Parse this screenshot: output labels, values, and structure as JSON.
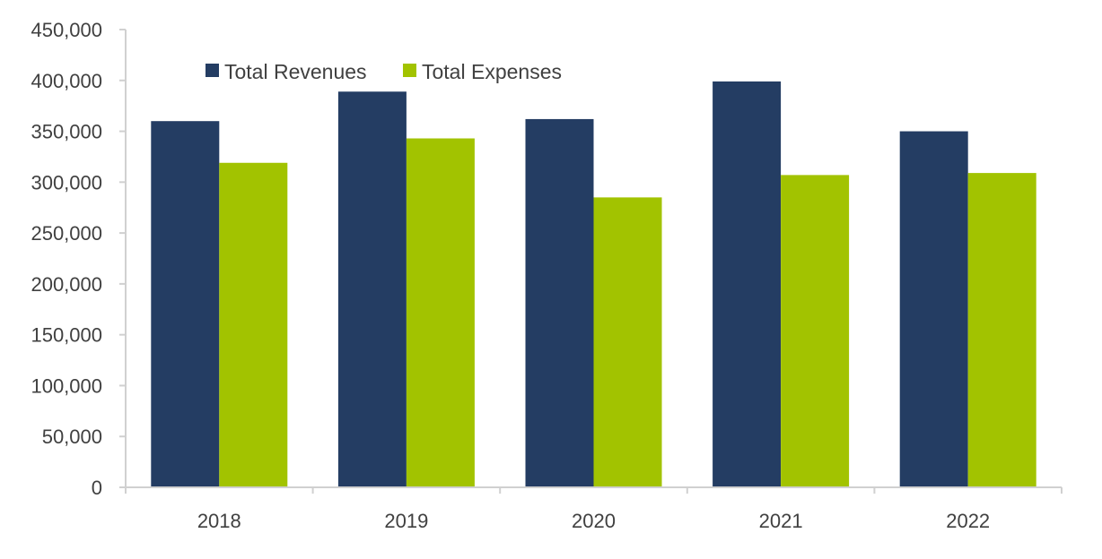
{
  "chart_data": {
    "type": "bar",
    "title": "",
    "xlabel": "",
    "ylabel": "",
    "categories": [
      "2018",
      "2019",
      "2020",
      "2021",
      "2022"
    ],
    "series": [
      {
        "name": "Total Revenues",
        "color": "#243d63",
        "values": [
          360000,
          389000,
          362000,
          399000,
          350000
        ]
      },
      {
        "name": "Total Expenses",
        "color": "#a2c300",
        "values": [
          319000,
          343000,
          285000,
          307000,
          309000
        ]
      }
    ],
    "ylim": [
      0,
      450000
    ],
    "y_ticks": [
      0,
      50000,
      100000,
      150000,
      200000,
      250000,
      300000,
      350000,
      400000,
      450000
    ],
    "y_tick_labels": [
      "0",
      "50,000",
      "100,000",
      "150,000",
      "200,000",
      "250,000",
      "300,000",
      "350,000",
      "400,000",
      "450,000"
    ],
    "legend": {
      "placement": "top-left",
      "orientation": "horizontal"
    },
    "grid": false,
    "axis_color": "#d0d0d0"
  }
}
